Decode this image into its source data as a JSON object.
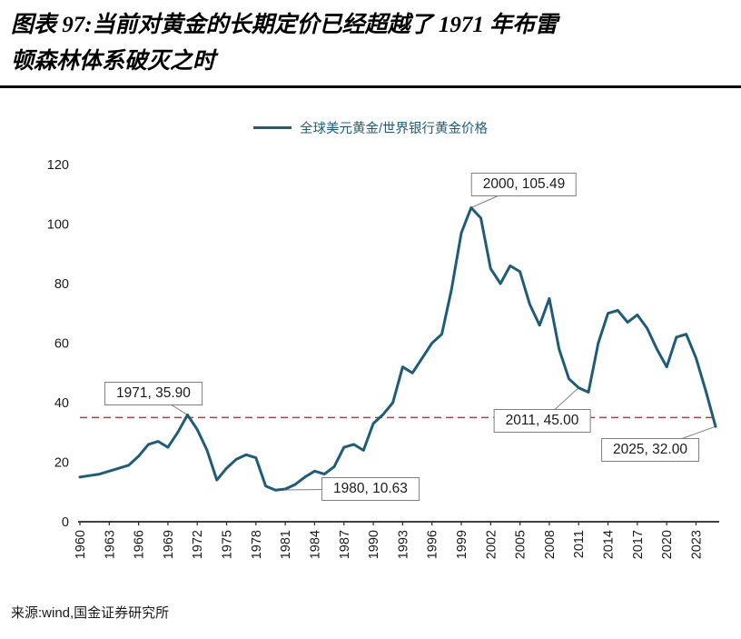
{
  "title": {
    "line1": "图表 97:当前对黄金的长期定价已经超越了 1971 年布雷",
    "line2": "顿森林体系破灭之时"
  },
  "legend": {
    "label": "全球美元黄金/世界银行黄金价格"
  },
  "source": "来源:wind,国金证券研究所",
  "chart_data": {
    "type": "line",
    "title": "当前对黄金的长期定价已经超越了1971年布雷顿森林体系破灭之时",
    "legend_position": "top-center",
    "grid": false,
    "line_color": "#1F5C77",
    "ylim": [
      0,
      120
    ],
    "yticks": [
      0,
      20,
      40,
      60,
      80,
      100,
      120
    ],
    "xticks": [
      1960,
      1963,
      1966,
      1969,
      1972,
      1975,
      1978,
      1981,
      1984,
      1987,
      1990,
      1993,
      1996,
      1999,
      2002,
      2005,
      2008,
      2011,
      2014,
      2017,
      2020,
      2023
    ],
    "years": [
      1960,
      1961,
      1962,
      1963,
      1964,
      1965,
      1966,
      1967,
      1968,
      1969,
      1970,
      1971,
      1972,
      1973,
      1974,
      1975,
      1976,
      1977,
      1978,
      1979,
      1980,
      1981,
      1982,
      1983,
      1984,
      1985,
      1986,
      1987,
      1988,
      1989,
      1990,
      1991,
      1992,
      1993,
      1994,
      1995,
      1996,
      1997,
      1998,
      1999,
      2000,
      2001,
      2002,
      2003,
      2004,
      2005,
      2006,
      2007,
      2008,
      2009,
      2010,
      2011,
      2012,
      2013,
      2014,
      2015,
      2016,
      2017,
      2018,
      2019,
      2020,
      2021,
      2022,
      2023,
      2024,
      2025
    ],
    "series": [
      {
        "name": "全球美元黄金/世界银行黄金价格",
        "values": [
          15.0,
          15.5,
          16.0,
          17.0,
          18.0,
          19.0,
          22.0,
          26.0,
          27.0,
          25.0,
          30.0,
          35.9,
          31.0,
          24.0,
          14.0,
          18.0,
          21.0,
          22.5,
          21.5,
          12.0,
          10.63,
          11.0,
          12.5,
          15.0,
          17.0,
          16.0,
          18.5,
          25.0,
          26.0,
          24.0,
          33.0,
          36.0,
          40.0,
          52.0,
          50.0,
          55.0,
          60.0,
          63.0,
          78.0,
          97.0,
          105.49,
          102.0,
          85.0,
          80.0,
          86.0,
          84.0,
          73.0,
          66.0,
          75.0,
          58.0,
          48.0,
          45.0,
          43.5,
          60.0,
          70.0,
          71.0,
          67.0,
          69.5,
          65.0,
          58.0,
          52.0,
          62.0,
          63.0,
          55.0,
          44.0,
          32.0
        ]
      }
    ],
    "reference_line": {
      "value": 35,
      "color": "#CC3333",
      "style": "dashed"
    },
    "annotations": [
      {
        "label": "1971, 35.90",
        "year": 1971,
        "value": 35.9
      },
      {
        "label": "2000, 105.49",
        "year": 2000,
        "value": 105.49
      },
      {
        "label": "1980, 10.63",
        "year": 1980,
        "value": 10.63
      },
      {
        "label": "2011, 45.00",
        "year": 2011,
        "value": 45.0
      },
      {
        "label": "2025, 32.00",
        "year": 2025,
        "value": 32.0
      }
    ]
  }
}
